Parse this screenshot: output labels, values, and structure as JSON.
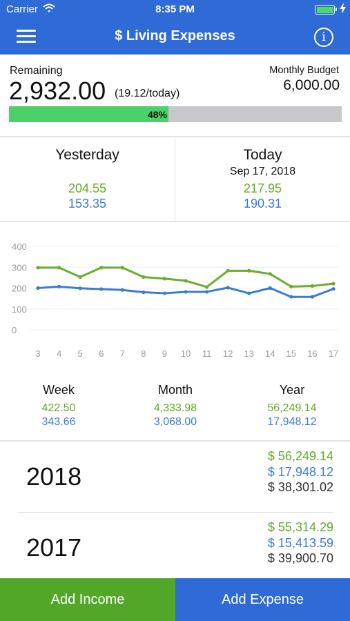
{
  "status_bar": {
    "carrier": "Carrier",
    "time": "8:35 PM",
    "icons": [
      "wifi-icon",
      "battery-icon",
      "charging-bolt-icon"
    ]
  },
  "nav": {
    "title": "$ Living Expenses",
    "menu_icon": "hamburger-menu-icon",
    "info_icon": "info-icon",
    "info_glyph": "i"
  },
  "summary": {
    "remaining_label": "Remaining",
    "remaining_value": "2,932.00",
    "remaining_per_day": "(19.12/today)",
    "budget_label": "Monthly Budget",
    "budget_value": "6,000.00",
    "progress_label": "48%",
    "progress_fraction": 0.48
  },
  "days": {
    "yesterday": {
      "label": "Yesterday",
      "income": "204.55",
      "expense": "153.35"
    },
    "today": {
      "label": "Today",
      "date": "Sep 17, 2018",
      "income": "217.95",
      "expense": "190.31"
    }
  },
  "chart_data": {
    "type": "line",
    "x": [
      3,
      4,
      5,
      6,
      7,
      8,
      9,
      10,
      11,
      12,
      13,
      14,
      15,
      16,
      17
    ],
    "ylim": [
      0,
      400
    ],
    "yticks": [
      0,
      100,
      200,
      300,
      400
    ],
    "grid": true,
    "series": [
      {
        "color": "#6aac2e",
        "values": [
          298,
          298,
          253,
          298,
          298,
          253,
          245,
          235,
          205,
          283,
          283,
          268,
          207,
          210,
          221
        ]
      },
      {
        "color": "#3a7bd5",
        "values": [
          200,
          207,
          199,
          195,
          191,
          180,
          175,
          182,
          182,
          202,
          175,
          200,
          158,
          158,
          196
        ]
      }
    ]
  },
  "periods": [
    {
      "label": "Week",
      "income": "422.50",
      "expense": "343.66"
    },
    {
      "label": "Month",
      "income": "4,333.98",
      "expense": "3,068.00"
    },
    {
      "label": "Year",
      "income": "56,249.14",
      "expense": "17,948.12"
    }
  ],
  "years": [
    {
      "year": "2018",
      "income": "$ 56,249.14",
      "expense": "$ 17,948.12",
      "balance": "$ 38,301.02"
    },
    {
      "year": "2017",
      "income": "$ 55,314.29",
      "expense": "$ 15,413.59",
      "balance": "$ 39,900.70"
    }
  ],
  "footer": {
    "add_income": "Add Income",
    "add_expense": "Add Expense"
  },
  "colors": {
    "brand_blue": "#2f6bd6",
    "income_green": "#5eac24",
    "expense_blue": "#3a7bd5",
    "progress_green": "#4cd16a",
    "add_income_green": "#52a728"
  }
}
